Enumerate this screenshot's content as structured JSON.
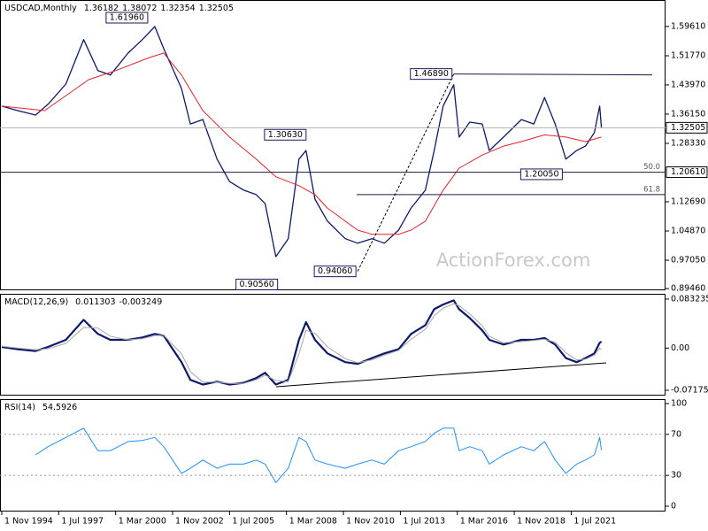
{
  "chart_data": [
    {
      "type": "line",
      "title": "USDCAD,Monthly",
      "ohlc": [
        1.36182,
        1.38072,
        1.32354,
        1.32505
      ],
      "x": [
        "1994-11",
        "1995-08",
        "1996-06",
        "1997-01",
        "1997-11",
        "1998-09",
        "1999-05",
        "1999-12",
        "2000-10",
        "2001-06",
        "2002-01",
        "2002-06",
        "2003-04",
        "2003-09",
        "2004-04",
        "2004-12",
        "2005-07",
        "2006-03",
        "2006-10",
        "2007-03",
        "2007-09",
        "2008-04",
        "2008-10",
        "2009-02",
        "2009-07",
        "2010-02",
        "2010-12",
        "2011-07",
        "2012-03",
        "2012-10",
        "2013-06",
        "2014-01",
        "2014-09",
        "2015-02",
        "2015-07",
        "2016-01",
        "2016-04",
        "2016-10",
        "2017-05",
        "2017-09",
        "2018-05",
        "2019-03",
        "2019-10",
        "2020-04",
        "2020-10",
        "2021-04",
        "2021-10",
        "2022-03",
        "2022-08",
        "2022-11",
        "2022-12"
      ],
      "xlim": [
        "1994-10",
        "2025-12"
      ],
      "series": [
        {
          "color": "#0d1a6b",
          "values": [
            1.383,
            1.371,
            1.359,
            1.388,
            1.442,
            1.561,
            1.478,
            1.466,
            1.525,
            1.561,
            1.596,
            1.537,
            1.43,
            1.335,
            1.347,
            1.241,
            1.181,
            1.158,
            1.146,
            1.122,
            0.98,
            1.028,
            1.241,
            1.264,
            1.134,
            1.075,
            1.028,
            1.016,
            1.028,
            1.016,
            1.051,
            1.11,
            1.158,
            1.264,
            1.383,
            1.44,
            1.3,
            1.34,
            1.335,
            1.264,
            1.3,
            1.347,
            1.335,
            1.406,
            1.335,
            1.241,
            1.264,
            1.276,
            1.312,
            1.383,
            1.325
          ]
        },
        {
          "color": "#e8202a",
          "x": [
            "1994-11",
            "1996-11",
            "1998-12",
            "2000-03",
            "2001-10",
            "2002-06",
            "2003-04",
            "2004-04",
            "2005-07",
            "2006-10",
            "2007-09",
            "2008-10",
            "2009-07",
            "2010-02",
            "2010-12",
            "2011-07",
            "2012-03",
            "2013-06",
            "2014-01",
            "2014-09",
            "2015-07",
            "2016-04",
            "2017-05",
            "2018-05",
            "2019-03",
            "2020-04",
            "2021-04",
            "2022-03",
            "2022-12"
          ],
          "values": [
            1.383,
            1.371,
            1.454,
            1.478,
            1.513,
            1.525,
            1.466,
            1.371,
            1.3,
            1.241,
            1.194,
            1.17,
            1.146,
            1.11,
            1.075,
            1.051,
            1.04,
            1.04,
            1.051,
            1.075,
            1.158,
            1.217,
            1.252,
            1.276,
            1.288,
            1.306,
            1.3,
            1.288,
            1.3
          ]
        }
      ],
      "ylim": [
        0.89,
        1.667
      ],
      "yticks": [
        {
          "value": 1.5961,
          "label": "1.59610"
        },
        {
          "value": 1.5177,
          "label": "1.51770"
        },
        {
          "value": 1.4397,
          "label": "1.43970"
        },
        {
          "value": 1.3615,
          "label": "1.36150"
        },
        {
          "value": 1.2833,
          "label": "1.28330"
        },
        {
          "value": 1.1269,
          "label": "1.12690"
        },
        {
          "value": 1.0487,
          "label": "1.04870"
        },
        {
          "value": 0.9705,
          "label": "0.97050"
        },
        {
          "value": 0.8946,
          "label": "0.89460"
        }
      ],
      "fib_levels": [
        {
          "name": "50.0",
          "value": 1.2061,
          "value_label": "1.20610"
        },
        {
          "name": "61.8",
          "value": 1.146
        }
      ],
      "annotations": [
        {
          "label": "1.61960",
          "value": 1.6196,
          "x": "2001-10"
        },
        {
          "label": "1.46890",
          "value": 1.4689,
          "x": "2016-01"
        },
        {
          "label": "1.30630",
          "value": 1.3063,
          "x": "2009-03"
        },
        {
          "label": "1.20050",
          "value": 1.2005,
          "x": "2021-03"
        },
        {
          "label": "0.90560",
          "value": 0.9056,
          "x": "2007-11"
        },
        {
          "label": "0.94060",
          "value": 0.9406,
          "x": "2011-07"
        }
      ],
      "watermark": "ActionForex.com"
    },
    {
      "type": "line",
      "title": "MACD(12,26,9)",
      "last_values": [
        0.011303,
        -0.003249
      ],
      "x": [
        "1994-11",
        "1995-08",
        "1996-06",
        "1997-01",
        "1997-11",
        "1998-09",
        "1999-05",
        "1999-12",
        "2000-10",
        "2001-06",
        "2002-01",
        "2002-06",
        "2003-04",
        "2003-09",
        "2004-04",
        "2004-12",
        "2005-07",
        "2006-03",
        "2006-10",
        "2007-03",
        "2007-09",
        "2008-04",
        "2008-10",
        "2009-02",
        "2009-07",
        "2010-02",
        "2010-12",
        "2011-07",
        "2012-03",
        "2012-10",
        "2013-06",
        "2014-01",
        "2014-09",
        "2015-02",
        "2015-07",
        "2016-01",
        "2016-04",
        "2016-10",
        "2017-05",
        "2017-09",
        "2018-05",
        "2019-03",
        "2019-10",
        "2020-04",
        "2020-10",
        "2021-04",
        "2021-10",
        "2022-03",
        "2022-08",
        "2022-11",
        "2022-12"
      ],
      "xlim": [
        "1994-10",
        "2025-12"
      ],
      "series": [
        {
          "color": "#0d1a6b",
          "values": [
            0.002,
            -0.002,
            -0.005,
            0.002,
            0.014,
            0.048,
            0.024,
            0.014,
            0.014,
            0.018,
            0.024,
            0.021,
            -0.024,
            -0.054,
            -0.062,
            -0.057,
            -0.062,
            -0.059,
            -0.051,
            -0.042,
            -0.062,
            -0.054,
            0.014,
            0.044,
            0.014,
            -0.009,
            -0.024,
            -0.027,
            -0.017,
            -0.009,
            -0.002,
            0.024,
            0.039,
            0.066,
            0.074,
            0.081,
            0.066,
            0.051,
            0.03,
            0.014,
            0.006,
            0.014,
            0.014,
            0.017,
            0.006,
            -0.017,
            -0.024,
            -0.017,
            -0.009,
            0.009,
            0.011
          ]
        },
        {
          "color": "#a8a8a8",
          "values": [
            0.003,
            0.0,
            -0.003,
            -0.001,
            0.008,
            0.035,
            0.034,
            0.02,
            0.014,
            0.016,
            0.021,
            0.022,
            -0.01,
            -0.04,
            -0.058,
            -0.058,
            -0.06,
            -0.06,
            -0.054,
            -0.046,
            -0.055,
            -0.057,
            -0.01,
            0.03,
            0.025,
            0.002,
            -0.018,
            -0.025,
            -0.02,
            -0.012,
            -0.004,
            0.015,
            0.032,
            0.055,
            0.068,
            0.075,
            0.072,
            0.058,
            0.038,
            0.02,
            0.009,
            0.011,
            0.013,
            0.015,
            0.01,
            -0.008,
            -0.02,
            -0.019,
            -0.012,
            0.0,
            -0.003
          ]
        }
      ],
      "ylim": [
        -0.0808,
        0.0922
      ],
      "yticks": [
        0.083235,
        {
          "value": 0,
          "label": "0.00"
        },
        -0.071752
      ]
    },
    {
      "type": "line",
      "title": "RSI(14)",
      "last_values": [
        54.5926
      ],
      "x": [
        "1994-11",
        "1995-08",
        "1996-06",
        "1997-01",
        "1997-11",
        "1998-09",
        "1999-05",
        "1999-12",
        "2000-10",
        "2001-06",
        "2002-01",
        "2002-06",
        "2003-04",
        "2003-09",
        "2004-04",
        "2004-12",
        "2005-07",
        "2006-03",
        "2006-10",
        "2007-03",
        "2007-09",
        "2008-04",
        "2008-10",
        "2009-02",
        "2009-07",
        "2010-02",
        "2010-12",
        "2011-07",
        "2012-03",
        "2012-10",
        "2013-06",
        "2014-01",
        "2014-09",
        "2015-02",
        "2015-07",
        "2016-01",
        "2016-04",
        "2016-10",
        "2017-05",
        "2017-09",
        "2018-05",
        "2019-03",
        "2019-10",
        "2020-04",
        "2020-10",
        "2021-04",
        "2021-10",
        "2022-03",
        "2022-08",
        "2022-11",
        "2022-12"
      ],
      "xlim": [
        "1994-10",
        "2025-12"
      ],
      "series": [
        {
          "color": "#1e90ff",
          "values": [
            null,
            null,
            50,
            58,
            67,
            76,
            54,
            54,
            63,
            64,
            67,
            58,
            32,
            37,
            45,
            37,
            41,
            41,
            45,
            41,
            23,
            37,
            67,
            63,
            45,
            41,
            37,
            41,
            45,
            41,
            54,
            58,
            63,
            71,
            76,
            76,
            54,
            58,
            54,
            41,
            50,
            58,
            54,
            63,
            45,
            32,
            41,
            45,
            50,
            67,
            54.5926
          ]
        }
      ],
      "ylim": [
        -5.2,
        104.3
      ],
      "yticks": [
        100,
        70,
        30,
        0
      ],
      "levels": [
        70,
        30
      ],
      "xticks": [
        {
          "value": "1994-11",
          "label": "1 Nov 1994"
        },
        {
          "value": "1997-07",
          "label": "1 Jul 1997"
        },
        {
          "value": "2000-03",
          "label": "1 Mar 2000"
        },
        {
          "value": "2002-11",
          "label": "1 Nov 2002"
        },
        {
          "value": "2005-07",
          "label": "1 Jul 2005"
        },
        {
          "value": "2008-03",
          "label": "1 Mar 2008"
        },
        {
          "value": "2010-11",
          "label": "1 Nov 2010"
        },
        {
          "value": "2013-07",
          "label": "1 Jul 2013"
        },
        {
          "value": "2016-03",
          "label": "1 Mar 2016"
        },
        {
          "value": "2018-11",
          "label": "1 Nov 2018"
        },
        {
          "value": "2021-07",
          "label": "1 Jul 2021"
        }
      ]
    }
  ]
}
